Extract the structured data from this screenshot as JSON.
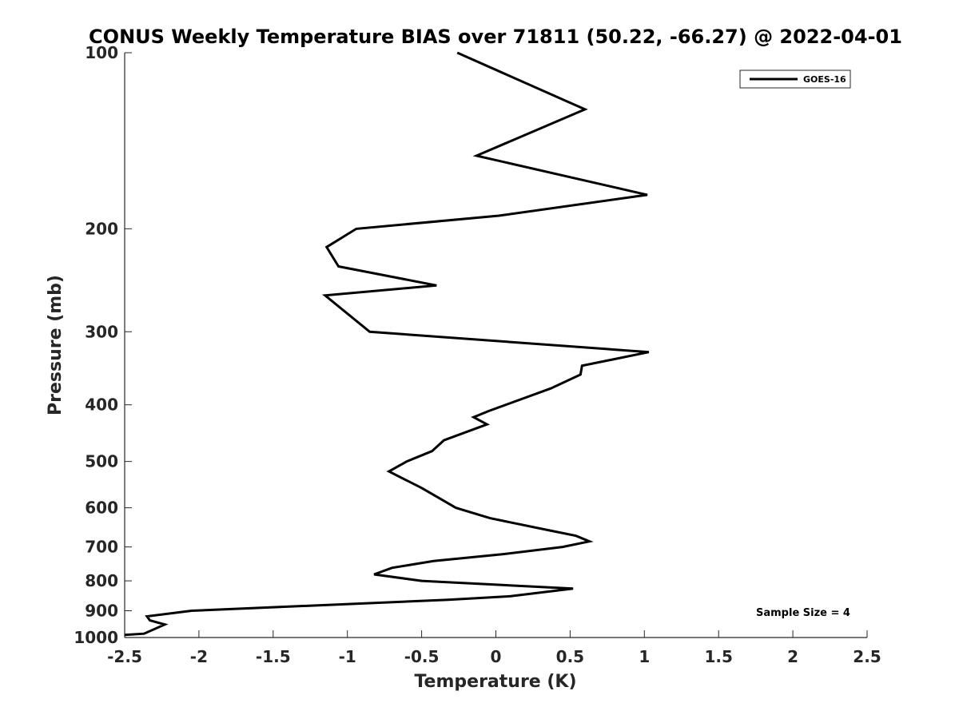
{
  "chart_data": {
    "type": "line",
    "title": "CONUS Weekly Temperature BIAS over 71811 (50.22, -66.27) @ 2022-04-01",
    "xlabel": "Temperature (K)",
    "ylabel": "Pressure (mb)",
    "xlim": [
      -2.5,
      2.5
    ],
    "ylim": [
      100,
      1000
    ],
    "y_scale": "log",
    "y_reversed": true,
    "grid": false,
    "legend_position": "top-right",
    "x_ticks": [
      -2.5,
      -2,
      -1.5,
      -1,
      -0.5,
      0,
      0.5,
      1,
      1.5,
      2,
      2.5
    ],
    "x_tick_labels": [
      "-2.5",
      "-2",
      "-1.5",
      "-1",
      "-0.5",
      "0",
      "0.5",
      "1",
      "1.5",
      "2",
      "2.5"
    ],
    "y_ticks": [
      100,
      200,
      300,
      400,
      500,
      600,
      700,
      800,
      900,
      1000
    ],
    "y_tick_labels": [
      "100",
      "200",
      "300",
      "400",
      "500",
      "600",
      "700",
      "800",
      "900",
      "1000"
    ],
    "annotation": "Sample Size = 4",
    "series": [
      {
        "name": "GOES-16",
        "color": "#000000",
        "points": [
          [
            -0.26,
            100
          ],
          [
            0.6,
            125
          ],
          [
            -0.13,
            150
          ],
          [
            1.02,
            175
          ],
          [
            0.02,
            190
          ],
          [
            -0.94,
            200
          ],
          [
            -1.14,
            215
          ],
          [
            -1.06,
            232
          ],
          [
            -0.4,
            250
          ],
          [
            -1.15,
            260
          ],
          [
            -0.85,
            300
          ],
          [
            1.03,
            325
          ],
          [
            0.58,
            343
          ],
          [
            0.57,
            355
          ],
          [
            0.37,
            375
          ],
          [
            -0.05,
            410
          ],
          [
            -0.15,
            420
          ],
          [
            -0.06,
            432
          ],
          [
            -0.35,
            460
          ],
          [
            -0.43,
            480
          ],
          [
            -0.6,
            500
          ],
          [
            -0.72,
            520
          ],
          [
            -0.5,
            555
          ],
          [
            -0.37,
            580
          ],
          [
            -0.27,
            600
          ],
          [
            -0.04,
            625
          ],
          [
            0.35,
            655
          ],
          [
            0.54,
            670
          ],
          [
            0.63,
            685
          ],
          [
            0.45,
            700
          ],
          [
            0.05,
            720
          ],
          [
            -0.42,
            740
          ],
          [
            -0.7,
            760
          ],
          [
            -0.82,
            780
          ],
          [
            -0.5,
            800
          ],
          [
            0.52,
            825
          ],
          [
            0.1,
            850
          ],
          [
            -0.32,
            862
          ],
          [
            -2.05,
            900
          ],
          [
            -2.35,
            920
          ],
          [
            -2.33,
            935
          ],
          [
            -2.23,
            950
          ],
          [
            -2.37,
            985
          ],
          [
            -2.5,
            990
          ]
        ]
      }
    ]
  }
}
